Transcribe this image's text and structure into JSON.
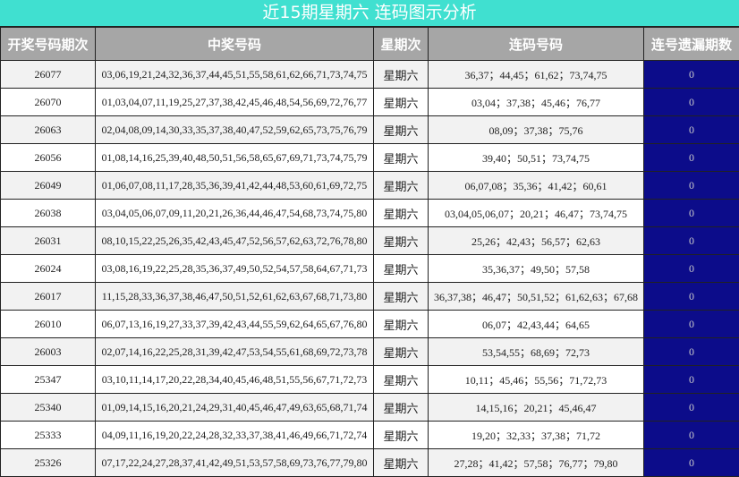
{
  "title": "近15期星期六 连码图示分析",
  "headers": [
    "开奖号码期次",
    "中奖号码",
    "星期次",
    "连码号码",
    "连号遗漏期数"
  ],
  "colors": {
    "title_bg": "#40e0d0",
    "header_bg": "#a6a6a6",
    "miss_bg": "#0c0c8a"
  },
  "rows": [
    {
      "issue": "26077",
      "numbers": "03,06,19,21,24,32,36,37,44,45,51,55,58,61,62,66,71,73,74,75",
      "weekday": "星期六",
      "consecutive": "36,37；44,45；61,62；73,74,75",
      "miss": "0"
    },
    {
      "issue": "26070",
      "numbers": "01,03,04,07,11,19,25,27,37,38,42,45,46,48,54,56,69,72,76,77",
      "weekday": "星期六",
      "consecutive": "03,04；37,38；45,46；76,77",
      "miss": "0"
    },
    {
      "issue": "26063",
      "numbers": "02,04,08,09,14,30,33,35,37,38,40,47,52,59,62,65,73,75,76,79",
      "weekday": "星期六",
      "consecutive": "08,09；37,38；75,76",
      "miss": "0"
    },
    {
      "issue": "26056",
      "numbers": "01,08,14,16,25,39,40,48,50,51,56,58,65,67,69,71,73,74,75,79",
      "weekday": "星期六",
      "consecutive": "39,40；50,51；73,74,75",
      "miss": "0"
    },
    {
      "issue": "26049",
      "numbers": "01,06,07,08,11,17,28,35,36,39,41,42,44,48,53,60,61,69,72,75",
      "weekday": "星期六",
      "consecutive": "06,07,08；35,36；41,42；60,61",
      "miss": "0"
    },
    {
      "issue": "26038",
      "numbers": "03,04,05,06,07,09,11,20,21,26,36,44,46,47,54,68,73,74,75,80",
      "weekday": "星期六",
      "consecutive": "03,04,05,06,07；20,21；46,47；73,74,75",
      "miss": "0"
    },
    {
      "issue": "26031",
      "numbers": "08,10,15,22,25,26,35,42,43,45,47,52,56,57,62,63,72,76,78,80",
      "weekday": "星期六",
      "consecutive": "25,26；42,43；56,57；62,63",
      "miss": "0"
    },
    {
      "issue": "26024",
      "numbers": "03,08,16,19,22,25,28,35,36,37,49,50,52,54,57,58,64,67,71,73",
      "weekday": "星期六",
      "consecutive": "35,36,37；49,50；57,58",
      "miss": "0"
    },
    {
      "issue": "26017",
      "numbers": "11,15,28,33,36,37,38,46,47,50,51,52,61,62,63,67,68,71,73,80",
      "weekday": "星期六",
      "consecutive": "36,37,38；46,47；50,51,52；61,62,63；67,68",
      "miss": "0"
    },
    {
      "issue": "26010",
      "numbers": "06,07,13,16,19,27,33,37,39,42,43,44,55,59,62,64,65,67,76,80",
      "weekday": "星期六",
      "consecutive": "06,07；42,43,44；64,65",
      "miss": "0"
    },
    {
      "issue": "26003",
      "numbers": "02,07,14,16,22,25,28,31,39,42,47,53,54,55,61,68,69,72,73,78",
      "weekday": "星期六",
      "consecutive": "53,54,55；68,69；72,73",
      "miss": "0"
    },
    {
      "issue": "25347",
      "numbers": "03,10,11,14,17,20,22,28,34,40,45,46,48,51,55,56,67,71,72,73",
      "weekday": "星期六",
      "consecutive": "10,11；45,46；55,56；71,72,73",
      "miss": "0"
    },
    {
      "issue": "25340",
      "numbers": "01,09,14,15,16,20,21,24,29,31,40,45,46,47,49,63,65,68,71,74",
      "weekday": "星期六",
      "consecutive": "14,15,16；20,21；45,46,47",
      "miss": "0"
    },
    {
      "issue": "25333",
      "numbers": "04,09,11,16,19,20,22,24,28,32,33,37,38,41,46,49,66,71,72,74",
      "weekday": "星期六",
      "consecutive": "19,20；32,33；37,38；71,72",
      "miss": "0"
    },
    {
      "issue": "25326",
      "numbers": "07,17,22,24,27,28,37,41,42,49,51,53,57,58,69,73,76,77,79,80",
      "weekday": "星期六",
      "consecutive": "27,28；41,42；57,58；76,77；79,80",
      "miss": "0"
    }
  ]
}
